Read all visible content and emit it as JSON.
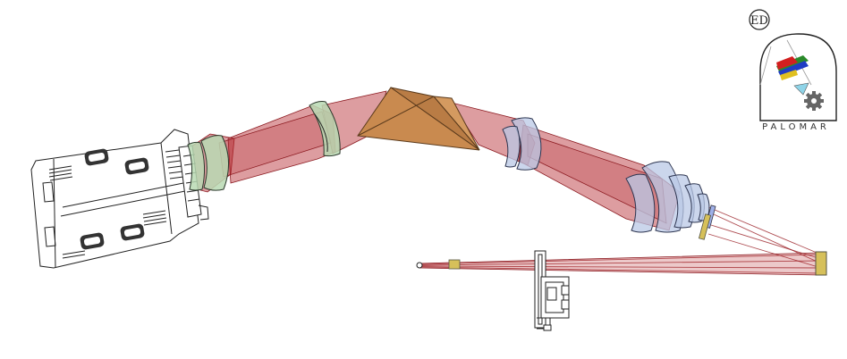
{
  "logo": {
    "monogram": "ED",
    "name": "PALOMAR"
  },
  "colors": {
    "beam": "#b3262d",
    "prism": "#c98a4f",
    "lens_green": "#b9d9b3",
    "lens_blue": "#b9c8e6",
    "mirror_yellow": "#d6c05a"
  },
  "icons": [
    "camera-housing-icon",
    "prism-icon",
    "palomar-logo-icon",
    "gear-icon"
  ]
}
